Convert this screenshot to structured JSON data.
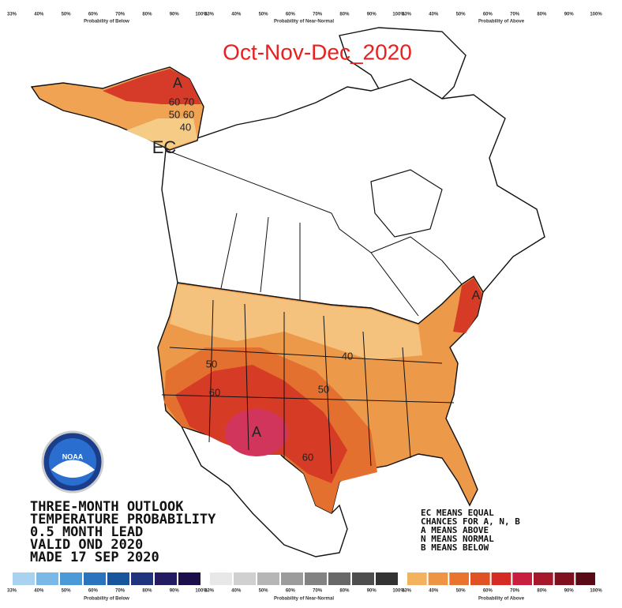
{
  "title": "Oct-Nov-Dec_2020",
  "top_scale": [
    {
      "label": "Probability of Below",
      "ticks": [
        "33%",
        "40%",
        "50%",
        "60%",
        "70%",
        "80%",
        "90%",
        "100%"
      ]
    },
    {
      "label": "Probability of Near-Normal",
      "ticks": [
        "33%",
        "40%",
        "50%",
        "60%",
        "70%",
        "80%",
        "90%",
        "100%"
      ]
    },
    {
      "label": "Probability of Above",
      "ticks": [
        "33%",
        "40%",
        "50%",
        "60%",
        "70%",
        "80%",
        "90%",
        "100%"
      ]
    }
  ],
  "bottom_scale": [
    {
      "label": "Probability of Below",
      "ticks": [
        "33%",
        "40%",
        "50%",
        "60%",
        "70%",
        "80%",
        "90%",
        "100%"
      ],
      "colors": [
        "#a9d1f0",
        "#7ab8e8",
        "#4a9ad8",
        "#2a74bd",
        "#18559c",
        "#20357e",
        "#231c63",
        "#1c0e48"
      ]
    },
    {
      "label": "Probability of Near-Normal",
      "ticks": [
        "33%",
        "40%",
        "50%",
        "60%",
        "70%",
        "80%",
        "90%",
        "100%"
      ],
      "colors": [
        "#e8e8e8",
        "#d0d0d0",
        "#b6b6b6",
        "#9c9c9c",
        "#828282",
        "#686868",
        "#4e4e4e",
        "#333333"
      ]
    },
    {
      "label": "Probability of Above",
      "ticks": [
        "33%",
        "40%",
        "50%",
        "60%",
        "70%",
        "80%",
        "90%",
        "100%"
      ],
      "colors": [
        "#f2b25e",
        "#ee9545",
        "#e8742f",
        "#e05226",
        "#d42c24",
        "#c81f3f",
        "#a6182c",
        "#7e1020",
        "#5a0a14"
      ]
    }
  ],
  "map_labels": [
    "A",
    "60 70",
    "50 60",
    "40",
    "EC",
    "50",
    "60",
    "40",
    "50",
    "A",
    "60",
    "A"
  ],
  "logo": "NOAA",
  "info_lines": [
    "THREE-MONTH OUTLOOK",
    "TEMPERATURE PROBABILITY",
    "0.5 MONTH LEAD",
    "VALID OND 2020",
    "MADE 17 SEP 2020"
  ],
  "key_lines": [
    "EC MEANS EQUAL",
    "CHANCES FOR A, N, B",
    "A MEANS ABOVE",
    "N MEANS NORMAL",
    "B MEANS BELOW"
  ]
}
